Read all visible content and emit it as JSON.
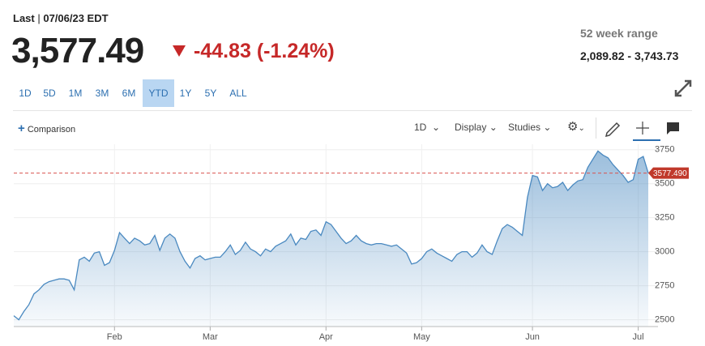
{
  "header": {
    "last_label": "Last",
    "date": "07/06/23 EDT",
    "price": "3,577.49",
    "change": "-44.83 (-1.24%)",
    "range_title": "52 week range",
    "range_value": "2,089.82 - 3,743.73"
  },
  "ranges": [
    "1D",
    "5D",
    "1M",
    "3M",
    "6M",
    "YTD",
    "1Y",
    "5Y",
    "ALL"
  ],
  "active_range": "YTD",
  "toolbar": {
    "comparison": "Comparison",
    "interval": "1D",
    "display": "Display",
    "studies": "Studies"
  },
  "chart_data": {
    "type": "area",
    "color": "#4a89c0",
    "grid": true,
    "categories": [
      null,
      null,
      null,
      null,
      null,
      null,
      null,
      null,
      null,
      null,
      null,
      null,
      null,
      null,
      null,
      null,
      null,
      null,
      null,
      null,
      "Feb",
      null,
      null,
      null,
      null,
      null,
      null,
      null,
      null,
      null,
      null,
      null,
      null,
      null,
      null,
      null,
      null,
      null,
      null,
      "Mar",
      null,
      null,
      null,
      null,
      null,
      null,
      null,
      null,
      null,
      null,
      null,
      null,
      null,
      null,
      null,
      null,
      null,
      null,
      null,
      null,
      null,
      null,
      "Apr",
      null,
      null,
      null,
      null,
      null,
      null,
      null,
      null,
      null,
      null,
      null,
      null,
      null,
      null,
      null,
      null,
      null,
      null,
      "May",
      null,
      null,
      null,
      null,
      null,
      null,
      null,
      null,
      null,
      null,
      null,
      null,
      null,
      null,
      null,
      null,
      null,
      null,
      null,
      null,
      null,
      "Jun",
      null,
      null,
      null,
      null,
      null,
      null,
      null,
      null,
      null,
      null,
      null,
      null,
      null,
      null,
      null,
      null,
      null,
      null,
      null,
      null,
      "Jul",
      null,
      null
    ],
    "values": [
      2530,
      2500,
      2560,
      2610,
      2690,
      2720,
      2760,
      2780,
      2790,
      2800,
      2800,
      2790,
      2720,
      2940,
      2960,
      2930,
      2990,
      3000,
      2900,
      2920,
      3010,
      3140,
      3100,
      3060,
      3100,
      3080,
      3050,
      3060,
      3120,
      3010,
      3100,
      3130,
      3100,
      3000,
      2930,
      2880,
      2950,
      2970,
      2940,
      2950,
      2960,
      2960,
      3000,
      3050,
      2980,
      3010,
      3070,
      3020,
      3000,
      2970,
      3020,
      3000,
      3040,
      3060,
      3080,
      3130,
      3050,
      3100,
      3090,
      3150,
      3160,
      3120,
      3220,
      3200,
      3150,
      3100,
      3060,
      3080,
      3120,
      3080,
      3060,
      3050,
      3060,
      3060,
      3050,
      3040,
      3050,
      3020,
      2990,
      2910,
      2920,
      2950,
      3000,
      3020,
      2990,
      2970,
      2950,
      2930,
      2980,
      3000,
      3000,
      2960,
      2990,
      3050,
      3000,
      2980,
      3080,
      3170,
      3200,
      3180,
      3150,
      3120,
      3400,
      3560,
      3550,
      3450,
      3500,
      3470,
      3480,
      3510,
      3450,
      3490,
      3520,
      3530,
      3620,
      3680,
      3740,
      3710,
      3690,
      3640,
      3600,
      3560,
      3510,
      3530,
      3680,
      3700,
      3577.49
    ],
    "ylim": [
      2450,
      3790
    ],
    "yticks": [
      2500,
      2750,
      3000,
      3250,
      3500,
      3750
    ],
    "reference_line": {
      "value": 3577.49,
      "label": "3577.490"
    }
  }
}
